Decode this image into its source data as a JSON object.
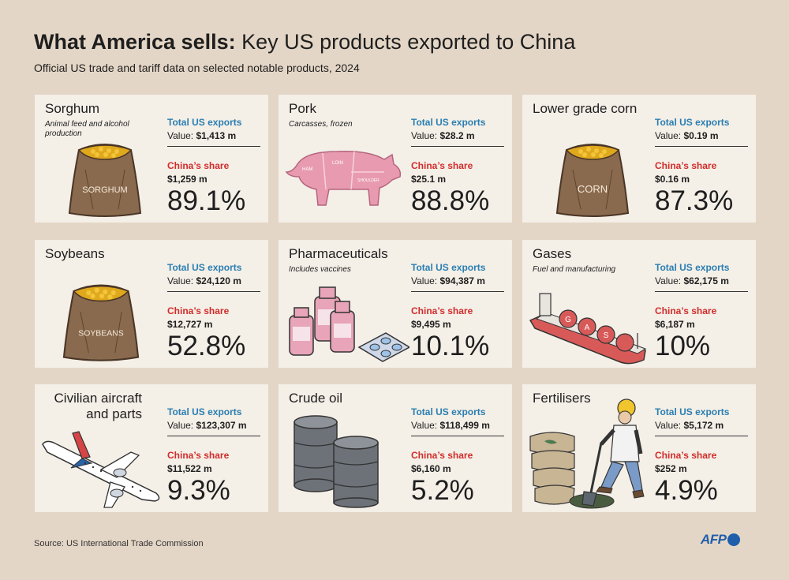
{
  "header": {
    "title_bold": "What America sells:",
    "title_rest": "Key US products exported to China",
    "subtitle": "Official US trade and tariff data on selected notable products, 2024"
  },
  "labels": {
    "total_us_exports": "Total US exports",
    "china_share": "China’s share",
    "value_prefix": "Value:"
  },
  "cards": [
    {
      "name": "Sorghum",
      "note": "Animal feed and alcohol production",
      "us_value": "$1,413 m",
      "china_value": "$1,259 m",
      "china_pct": "89.1%",
      "sack_label": "SORGHUM"
    },
    {
      "name": "Pork",
      "note": "Carcasses, frozen",
      "us_value": "$28.2 m",
      "china_value": "$25.1 m",
      "china_pct": "88.8%",
      "cut_labels": [
        "HAM",
        "LOIN",
        "SHOULDER"
      ]
    },
    {
      "name": "Lower grade corn",
      "note": "",
      "us_value": "$0.19 m",
      "china_value": "$0.16 m",
      "china_pct": "87.3%",
      "sack_label": "CORN"
    },
    {
      "name": "Soybeans",
      "note": "",
      "us_value": "$24,120 m",
      "china_value": "$12,727 m",
      "china_pct": "52.8%",
      "sack_label": "SOYBEANS"
    },
    {
      "name": "Pharmaceuticals",
      "note": "Includes vaccines",
      "us_value": "$94,387 m",
      "china_value": "$9,495 m",
      "china_pct": "10.1%"
    },
    {
      "name": "Gases",
      "note": "Fuel and manufacturing",
      "us_value": "$62,175 m",
      "china_value": "$6,187 m",
      "china_pct": "10%",
      "ship_letters": [
        "G",
        "A",
        "S"
      ]
    },
    {
      "name": "Civilian aircraft and parts",
      "note": "",
      "us_value": "$123,307 m",
      "china_value": "$11,522 m",
      "china_pct": "9.3%"
    },
    {
      "name": "Crude oil",
      "note": "",
      "us_value": "$118,499 m",
      "china_value": "$6,160 m",
      "china_pct": "5.2%"
    },
    {
      "name": "Fertilisers",
      "note": "",
      "us_value": "$5,172 m",
      "china_value": "$252 m",
      "china_pct": "4.9%"
    }
  ],
  "footer": {
    "source": "Source: US International Trade Commission",
    "logo": "AFP"
  }
}
